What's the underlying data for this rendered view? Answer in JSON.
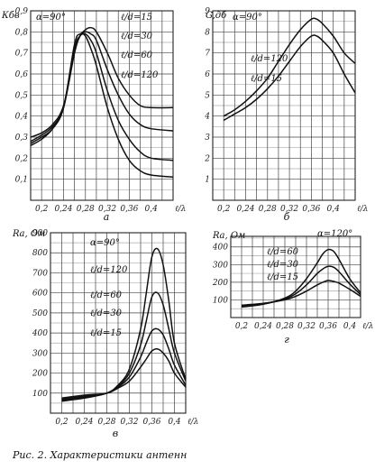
{
  "caption": "Рис. 2. Характеристики антенн",
  "chart_data": [
    {
      "id": "a",
      "type": "line",
      "sublabel": "а",
      "ylabel": "Кбв",
      "xlabel": "ℓ/λ",
      "alpha": "α=90°",
      "xlim": [
        0.18,
        0.44
      ],
      "ylim": [
        0,
        0.9
      ],
      "xticks": [
        "0,2",
        "0,24",
        "0,28",
        "0,32",
        "0,36",
        "0,4"
      ],
      "xtickvals": [
        0.2,
        0.24,
        0.28,
        0.32,
        0.36,
        0.4
      ],
      "yticks": [
        "0,1",
        "0,2",
        "0,3",
        "0,4",
        "0,5",
        "0,6",
        "0,7",
        "0,8",
        "0,9"
      ],
      "ytickvals": [
        0.1,
        0.2,
        0.3,
        0.4,
        0.5,
        0.6,
        0.7,
        0.8,
        0.9
      ],
      "series": [
        {
          "name": "ℓ/d=15",
          "x": [
            0.18,
            0.2,
            0.22,
            0.24,
            0.26,
            0.27,
            0.28,
            0.29,
            0.3,
            0.32,
            0.34,
            0.36,
            0.38,
            0.4,
            0.44
          ],
          "y": [
            0.3,
            0.32,
            0.36,
            0.45,
            0.7,
            0.78,
            0.81,
            0.82,
            0.8,
            0.7,
            0.58,
            0.5,
            0.45,
            0.44,
            0.44
          ]
        },
        {
          "name": "ℓ/d=30",
          "x": [
            0.18,
            0.2,
            0.22,
            0.24,
            0.26,
            0.27,
            0.28,
            0.29,
            0.3,
            0.32,
            0.34,
            0.36,
            0.38,
            0.4,
            0.44
          ],
          "y": [
            0.28,
            0.31,
            0.35,
            0.44,
            0.7,
            0.78,
            0.8,
            0.79,
            0.76,
            0.62,
            0.5,
            0.41,
            0.36,
            0.34,
            0.33
          ]
        },
        {
          "name": "ℓ/d=60",
          "x": [
            0.18,
            0.2,
            0.22,
            0.24,
            0.26,
            0.27,
            0.28,
            0.29,
            0.3,
            0.32,
            0.34,
            0.36,
            0.38,
            0.4,
            0.44
          ],
          "y": [
            0.27,
            0.3,
            0.34,
            0.44,
            0.72,
            0.78,
            0.79,
            0.76,
            0.7,
            0.52,
            0.38,
            0.29,
            0.23,
            0.2,
            0.19
          ]
        },
        {
          "name": "ℓ/d=120",
          "x": [
            0.18,
            0.2,
            0.22,
            0.24,
            0.26,
            0.27,
            0.28,
            0.29,
            0.3,
            0.32,
            0.34,
            0.36,
            0.38,
            0.4,
            0.44
          ],
          "y": [
            0.26,
            0.29,
            0.34,
            0.44,
            0.74,
            0.79,
            0.78,
            0.72,
            0.64,
            0.44,
            0.29,
            0.19,
            0.14,
            0.12,
            0.11
          ]
        }
      ]
    },
    {
      "id": "b",
      "type": "line",
      "sublabel": "б",
      "ylabel": "G,дб",
      "xlabel": "ℓ/λ",
      "alpha": "α=90°",
      "xlim": [
        0.18,
        0.44
      ],
      "ylim": [
        0,
        9
      ],
      "xticks": [
        "0,2",
        "0,24",
        "0,28",
        "0,32",
        "0,36",
        "0,4"
      ],
      "xtickvals": [
        0.2,
        0.24,
        0.28,
        0.32,
        0.36,
        0.4
      ],
      "yticks": [
        "1",
        "2",
        "3",
        "4",
        "5",
        "6",
        "7",
        "8",
        "9"
      ],
      "ytickvals": [
        1,
        2,
        3,
        4,
        5,
        6,
        7,
        8,
        9
      ],
      "series": [
        {
          "name": "ℓ/d=120",
          "x": [
            0.2,
            0.22,
            0.24,
            0.26,
            0.28,
            0.3,
            0.32,
            0.34,
            0.36,
            0.37,
            0.38,
            0.4,
            0.42,
            0.44
          ],
          "y": [
            4.0,
            4.3,
            4.7,
            5.2,
            5.8,
            6.6,
            7.4,
            8.1,
            8.6,
            8.6,
            8.4,
            7.8,
            7.0,
            6.5
          ]
        },
        {
          "name": "ℓ/d=15",
          "x": [
            0.2,
            0.22,
            0.24,
            0.26,
            0.28,
            0.3,
            0.32,
            0.34,
            0.36,
            0.37,
            0.38,
            0.4,
            0.42,
            0.44
          ],
          "y": [
            3.8,
            4.1,
            4.4,
            4.8,
            5.3,
            5.9,
            6.6,
            7.3,
            7.8,
            7.8,
            7.6,
            7.0,
            6.0,
            5.1
          ]
        }
      ]
    },
    {
      "id": "v",
      "type": "line",
      "sublabel": "в",
      "ylabel": "Rа, Ом",
      "xlabel": "ℓ/λ",
      "alpha": "α=90°",
      "xlim": [
        0.18,
        0.42
      ],
      "ylim": [
        0,
        900
      ],
      "xticks": [
        "0,2",
        "0,24",
        "0,28",
        "0,32",
        "0,36",
        "0,4"
      ],
      "xtickvals": [
        0.2,
        0.24,
        0.28,
        0.32,
        0.36,
        0.4
      ],
      "yticks": [
        "100",
        "200",
        "300",
        "400",
        "500",
        "600",
        "700",
        "800",
        "900"
      ],
      "ytickvals": [
        100,
        200,
        300,
        400,
        500,
        600,
        700,
        800,
        900
      ],
      "series": [
        {
          "name": "ℓ/d=120",
          "x": [
            0.2,
            0.24,
            0.28,
            0.3,
            0.32,
            0.34,
            0.35,
            0.36,
            0.37,
            0.38,
            0.39,
            0.4,
            0.42
          ],
          "y": [
            60,
            75,
            100,
            140,
            220,
            420,
            600,
            780,
            820,
            740,
            560,
            350,
            170
          ]
        },
        {
          "name": "ℓ/d=60",
          "x": [
            0.2,
            0.24,
            0.28,
            0.3,
            0.32,
            0.34,
            0.35,
            0.36,
            0.37,
            0.38,
            0.39,
            0.4,
            0.42
          ],
          "y": [
            65,
            80,
            100,
            135,
            200,
            340,
            460,
            580,
            600,
            540,
            420,
            300,
            160
          ]
        },
        {
          "name": "ℓ/d=30",
          "x": [
            0.2,
            0.24,
            0.28,
            0.3,
            0.32,
            0.34,
            0.35,
            0.36,
            0.37,
            0.38,
            0.39,
            0.4,
            0.42
          ],
          "y": [
            70,
            85,
            100,
            130,
            180,
            280,
            350,
            410,
            420,
            390,
            320,
            240,
            140
          ]
        },
        {
          "name": "ℓ/d=15",
          "x": [
            0.2,
            0.24,
            0.28,
            0.3,
            0.32,
            0.34,
            0.35,
            0.36,
            0.37,
            0.38,
            0.39,
            0.4,
            0.42
          ],
          "y": [
            75,
            90,
            100,
            125,
            160,
            230,
            270,
            310,
            320,
            300,
            260,
            200,
            130
          ]
        }
      ]
    },
    {
      "id": "g",
      "type": "line",
      "sublabel": "г",
      "ylabel": "Rа, Ом",
      "xlabel": "ℓ/λ",
      "alpha": "α=120°",
      "xlim": [
        0.18,
        0.42
      ],
      "ylim": [
        0,
        460
      ],
      "xticks": [
        "0,2",
        "0,24",
        "0,28",
        "0,32",
        "0,36",
        "0,4"
      ],
      "xtickvals": [
        0.2,
        0.24,
        0.28,
        0.32,
        0.36,
        0.4
      ],
      "yticks": [
        "100",
        "200",
        "300",
        "400"
      ],
      "ytickvals": [
        100,
        200,
        300,
        400
      ],
      "series": [
        {
          "name": "ℓ/d=60",
          "x": [
            0.2,
            0.24,
            0.28,
            0.3,
            0.32,
            0.34,
            0.35,
            0.36,
            0.37,
            0.38,
            0.4,
            0.42
          ],
          "y": [
            60,
            75,
            110,
            150,
            220,
            310,
            360,
            385,
            375,
            330,
            220,
            140
          ]
        },
        {
          "name": "ℓ/d=30",
          "x": [
            0.2,
            0.24,
            0.28,
            0.3,
            0.32,
            0.34,
            0.35,
            0.36,
            0.37,
            0.38,
            0.4,
            0.42
          ],
          "y": [
            65,
            78,
            105,
            135,
            185,
            250,
            275,
            290,
            285,
            260,
            190,
            130
          ]
        },
        {
          "name": "ℓ/d=15",
          "x": [
            0.2,
            0.24,
            0.28,
            0.3,
            0.32,
            0.34,
            0.35,
            0.36,
            0.37,
            0.38,
            0.4,
            0.42
          ],
          "y": [
            70,
            80,
            100,
            120,
            150,
            185,
            200,
            210,
            205,
            195,
            160,
            120
          ]
        }
      ]
    }
  ]
}
